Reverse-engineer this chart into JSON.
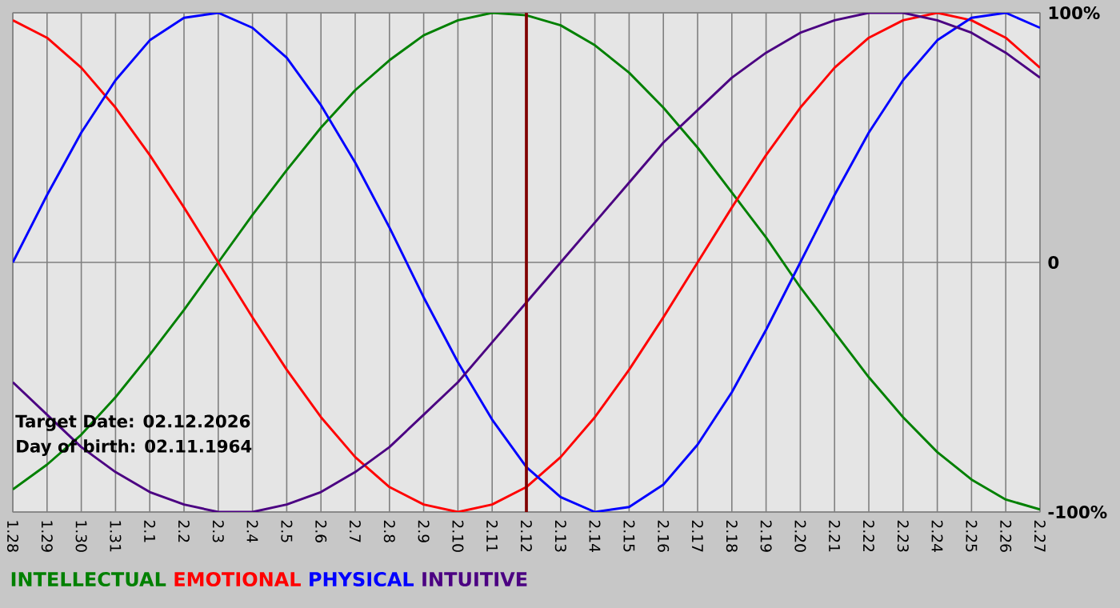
{
  "chart_data": {
    "type": "line",
    "categories": [
      "1.28",
      "1.29",
      "1.30",
      "1.31",
      "2.1",
      "2.2",
      "2.3",
      "2.4",
      "2.5",
      "2.6",
      "2.7",
      "2.8",
      "2.9",
      "2.10",
      "2.11",
      "2.12",
      "2.13",
      "2.14",
      "2.15",
      "2.16",
      "2.17",
      "2.18",
      "2.19",
      "2.20",
      "2.21",
      "2.22",
      "2.23",
      "2.24",
      "2.25",
      "2.26",
      "2.27"
    ],
    "series": [
      {
        "name": "INTELLECTUAL",
        "color": "#008000",
        "values": [
          -91,
          -81,
          -69,
          -54,
          -37,
          -19,
          0,
          19,
          37,
          54,
          69,
          81,
          91,
          97,
          100,
          99,
          95,
          87,
          76,
          62,
          46,
          28,
          10,
          -10,
          -28,
          -46,
          -62,
          -76,
          -87,
          -95,
          -99
        ]
      },
      {
        "name": "EMOTIONAL",
        "color": "#ff0000",
        "values": [
          97,
          90,
          78,
          62,
          43,
          22,
          0,
          -22,
          -43,
          -62,
          -78,
          -90,
          -97,
          -100,
          -97,
          -90,
          -78,
          -62,
          -43,
          -22,
          0,
          22,
          43,
          62,
          78,
          90,
          97,
          100,
          97,
          90,
          78
        ]
      },
      {
        "name": "PHYSICAL",
        "color": "#0000ff",
        "values": [
          0,
          27,
          52,
          73,
          89,
          98,
          100,
          94,
          82,
          63,
          40,
          14,
          -14,
          -40,
          -63,
          -82,
          -94,
          -100,
          -98,
          -89,
          -73,
          -52,
          -27,
          0,
          27,
          52,
          73,
          89,
          98,
          100,
          94
        ]
      },
      {
        "name": "INTUITIVE",
        "color": "#4b0082",
        "values": [
          -48,
          -61,
          -74,
          -84,
          -92,
          -97,
          -100,
          -100,
          -97,
          -92,
          -84,
          -74,
          -61,
          -48,
          -32,
          -16,
          0,
          16,
          32,
          48,
          61,
          74,
          84,
          92,
          97,
          100,
          100,
          97,
          92,
          84,
          74
        ]
      }
    ],
    "ylim": [
      -100,
      100
    ],
    "yticks": [
      {
        "value": -100,
        "label": "-100%"
      },
      0,
      {
        "value": 100,
        "label": "100%"
      }
    ],
    "grid": true,
    "legend": "bottom",
    "ref_lines": [
      {
        "axis": "x",
        "value": "2.12",
        "color": "#800000"
      }
    ],
    "annotations": [
      "Target Date: 02.12.2026",
      "Day of birth: 02.11.1964"
    ]
  }
}
